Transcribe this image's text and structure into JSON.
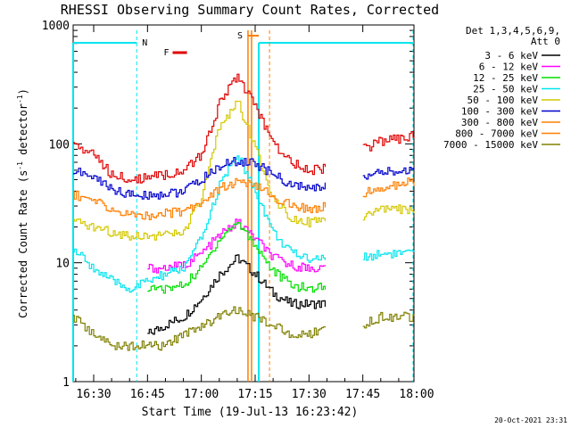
{
  "title": "RHESSI Observing Summary Count Rates, Corrected",
  "xlabel": "Start Time (19-Jul-13 16:23:42)",
  "ylabel_main": "Corrected Count Rate (s",
  "ylabel_sup1": "-1",
  "ylabel_mid": " detector",
  "ylabel_sup2": "-1",
  "ylabel_end": ")",
  "timestamp": "20-Oct-2021 23:31",
  "legend": {
    "header1": "Det 1,3,4,5,6,9,",
    "header2": "Att 0"
  },
  "markers": {
    "night": "N",
    "flare": "F",
    "saa": "S"
  },
  "colors": {
    "night": "#00e5ee",
    "flare": "#e00000",
    "saa": "#ff7f00"
  },
  "chart_data": {
    "type": "line",
    "title": "RHESSI Observing Summary Count Rates, Corrected",
    "xlabel": "Start Time (19-Jul-13 16:23:42)",
    "ylabel": "Corrected Count Rate (s-1 detector-1)",
    "yscale": "log",
    "ylim": [
      1,
      1000
    ],
    "xlim": [
      "16:23:42",
      "18:01"
    ],
    "xticks": [
      "16:30",
      "16:45",
      "17:00",
      "17:15",
      "17:30",
      "17:45",
      "18:00"
    ],
    "yticks": [
      "1",
      "10",
      "100",
      "1000"
    ],
    "x_minutes_from_1630": [
      -6,
      0,
      5,
      10,
      15,
      20,
      25,
      30,
      35,
      40,
      45,
      50,
      55,
      60,
      65,
      70,
      75,
      80,
      85,
      90
    ],
    "series": [
      {
        "name": "3 - 6 keV",
        "color": "#000000",
        "values": [
          null,
          null,
          null,
          null,
          2.5,
          3,
          3.5,
          5,
          8,
          11,
          8,
          5.5,
          4.5,
          4.5,
          4.5,
          null,
          null,
          null,
          null,
          null
        ]
      },
      {
        "name": "6 - 12 keV",
        "color": "#ff00ff",
        "values": [
          null,
          null,
          null,
          null,
          9,
          9,
          9.5,
          12,
          17,
          22,
          16,
          11,
          9.5,
          9,
          9,
          null,
          null,
          null,
          null,
          null
        ]
      },
      {
        "name": "12 - 25 keV",
        "color": "#00e000",
        "values": [
          null,
          null,
          null,
          null,
          6,
          6,
          6.5,
          9,
          16,
          22,
          14,
          8.5,
          6.5,
          6,
          6.5,
          null,
          null,
          null,
          null,
          null
        ]
      },
      {
        "name": "25 - 50 keV",
        "color": "#00e5ee",
        "values": [
          13,
          9,
          7,
          6,
          7,
          8,
          9,
          16,
          45,
          80,
          40,
          18,
          12,
          11,
          11,
          null,
          11,
          12,
          12,
          12
        ]
      },
      {
        "name": "50 - 100 keV",
        "color": "#d4c800",
        "values": [
          22,
          20,
          18,
          17,
          17,
          17,
          18,
          35,
          140,
          230,
          90,
          35,
          24,
          22,
          22,
          null,
          24,
          28,
          28,
          28
        ]
      },
      {
        "name": "100 - 300 keV",
        "color": "#0000cc",
        "values": [
          60,
          52,
          42,
          37,
          37,
          38,
          40,
          50,
          65,
          72,
          68,
          55,
          45,
          42,
          44,
          null,
          52,
          57,
          59,
          60
        ]
      },
      {
        "name": "300 - 800 keV",
        "color": "#ff7f00",
        "values": [
          38,
          33,
          28,
          25,
          25,
          26,
          27,
          33,
          42,
          48,
          44,
          36,
          30,
          28,
          30,
          null,
          38,
          43,
          46,
          48
        ]
      },
      {
        "name": "800 - 7000 keV",
        "color": "#ff7f00",
        "values": [
          null,
          null,
          null,
          null,
          null,
          null,
          null,
          null,
          null,
          null,
          null,
          null,
          null,
          null,
          null,
          null,
          null,
          null,
          null,
          null
        ]
      },
      {
        "name": "7000 - 15000 keV",
        "color": "#808000",
        "values": [
          3.5,
          2.5,
          2,
          2,
          2,
          2,
          2.5,
          3,
          3.5,
          4,
          3.5,
          3,
          2.5,
          2.5,
          3,
          null,
          3,
          3.5,
          3.5,
          3.5
        ]
      }
    ],
    "top_series": {
      "name": "flare-envelope",
      "color": "#e00000",
      "values": [
        100,
        80,
        55,
        50,
        52,
        55,
        60,
        80,
        220,
        380,
        200,
        100,
        70,
        60,
        62,
        null,
        90,
        105,
        110,
        120
      ]
    },
    "grid": false,
    "legend_position": "right-outside"
  }
}
